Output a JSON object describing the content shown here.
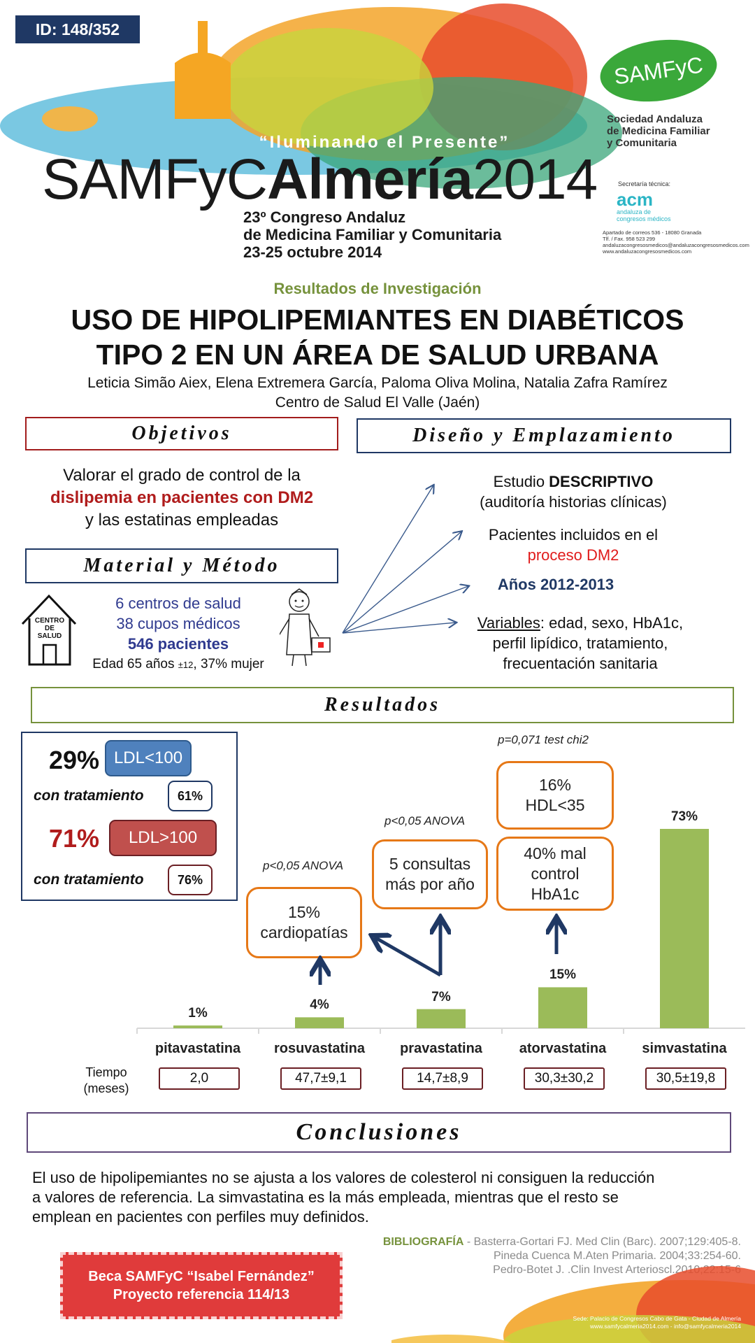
{
  "header": {
    "poster_id": "ID: 148/352",
    "congress_motto": "“Iluminando el Presente”",
    "congress_name_1": "SAMFyC",
    "congress_name_2": "Almería",
    "congress_year": "2014",
    "congress_line_1": "23º Congreso Andaluz",
    "congress_line_2": "de Medicina Familiar y Comunitaria",
    "congress_dates": "23-25 octubre 2014",
    "society_logo": "SAMFyC",
    "society_name_1": "Sociedad Andaluza",
    "society_name_2": "de Medicina Familiar",
    "society_name_3": "y Comunitaria",
    "secretaria_label": "Secretaría técnica:",
    "acm_logo": "acm",
    "acm_sub_1": "andaluza de",
    "acm_sub_2": "congresos médicos",
    "address_1": "Apartado de correos 536 - 18080 Granada",
    "address_2": "Tlf. / Fax. 958 523 299",
    "address_3": "andaluzacongresosmedicos@andaluzacongresosmedicos.com",
    "address_4": "www.andaluzacongresosmedicos.com"
  },
  "title": {
    "category": "Resultados de Investigación",
    "line_1": "USO DE HIPOLIPEMIANTES EN DIABÉTICOS",
    "line_2": "TIPO 2 EN UN ÁREA DE SALUD URBANA",
    "authors": "Leticia Simão Aiex, Elena Extremera García, Paloma Oliva Molina, Natalia Zafra Ramírez",
    "center": "Centro de Salud El Valle (Jaén)"
  },
  "objetivos": {
    "heading": "Objetivos",
    "text_1": "Valorar el grado de control de la",
    "text_2": "dislipemia en pacientes con DM2",
    "text_3": "y las estatinas empleadas"
  },
  "diseno": {
    "heading": "Diseño y Emplazamiento",
    "item_1a": "Estudio ",
    "item_1b": "DESCRIPTIVO",
    "item_1c": "(auditoría historias clínicas)",
    "item_2a": "Pacientes incluidos en el",
    "item_2b": "proceso DM2",
    "item_3": "Años 2012-2013",
    "item_4a": "Variables",
    "item_4b": ": edad, sexo, HbA1c,",
    "item_4c": "perfil lipídico, tratamiento,",
    "item_4d": "frecuentación sanitaria"
  },
  "material": {
    "heading": "Material y Método",
    "house_label_1": "CENTRO",
    "house_label_2": "DE",
    "house_label_3": "SALUD",
    "line_1": "6 centros de salud",
    "line_2": "38 cupos médicos",
    "line_3": "546 pacientes",
    "line_4a": "Edad 65 años ",
    "line_4b": "±12",
    "line_4c": ", 37% mujer"
  },
  "resultados": {
    "heading": "Resultados",
    "pct_low": "29%",
    "ldl_low": "LDL<100",
    "treat_label_1": "con tratamiento",
    "treat_low": "61%",
    "pct_high": "71%",
    "ldl_high": "LDL>100",
    "treat_label_2": "con tratamiento",
    "treat_high": "76%",
    "note_rosu": "p<0,05 ANOVA",
    "note_prava": "p<0,05 ANOVA",
    "note_atorva": "p=0,071 test chi2",
    "box_rosu": "15%\ncardiopatías",
    "box_prava": "5 consultas\nmás por año",
    "box_atorva_top": "16%\nHDL<35",
    "box_atorva_bottom": "40% mal\ncontrol\nHbA1c",
    "time_label_1": "Tiempo",
    "time_label_2": "(meses)"
  },
  "chart_data": {
    "type": "bar",
    "categories": [
      "pitavastatina",
      "rosuvastatina",
      "pravastatina",
      "atorvastatina",
      "simvastatina"
    ],
    "values": [
      1,
      4,
      7,
      15,
      73
    ],
    "value_labels": [
      "1%",
      "4%",
      "7%",
      "15%",
      "73%"
    ],
    "time_months": [
      "2,0",
      "47,7±9,1",
      "14,7±8,9",
      "30,3±30,2",
      "30,5±19,8"
    ],
    "ylim": [
      0,
      73
    ],
    "bar_color": "#9bbb59"
  },
  "conclusiones": {
    "heading": "Conclusiones",
    "text_1": "El uso de hipolipemiantes no se ajusta a los valores de colesterol ni consiguen la reducción",
    "text_2": "a valores de referencia. La simvastatina es la más empleada, mientras que el resto se",
    "text_3": "emplean en pacientes con perfiles muy definidos."
  },
  "bibliografia": {
    "label": "BIBLIOGRAFÍA",
    "ref_1": " - Basterra-Gortari FJ. Med Clin (Barc). 2007;129:405-8.",
    "ref_2": "Pineda Cuenca M.Aten Primaria. 2004;33:254-60.",
    "ref_3": "Pedro-Botet J. .Clin Invest Arterioscl.2010;22:15-6"
  },
  "beca": {
    "line_1": "Beca SAMFyC “Isabel Fernández”",
    "line_2": "Proyecto referencia 114/13"
  },
  "footer": {
    "line_1": "Sede: Palacio de Congresos Cabo de Gata - Ciudad de Almería",
    "line_2": "www.samfycalmeria2014.com - info@samfycalmeria2014"
  },
  "colors": {
    "navy": "#1f3864",
    "dark_red": "#b01c1c",
    "olive": "#76923c",
    "orange": "#e67817",
    "green_bar": "#9bbb59",
    "blue_pill": "#4f81bd",
    "red_pill": "#c0504d"
  }
}
